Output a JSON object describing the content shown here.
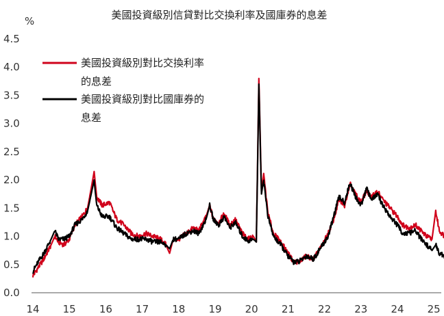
{
  "chart_data": {
    "type": "line",
    "title": "美國投資級別信貸對比交換利率及國庫券的息差",
    "ylabel": "%",
    "xlabel": "",
    "ylim": [
      0,
      4.5
    ],
    "yticks": [
      "0.0",
      "0.5",
      "1.0",
      "1.5",
      "2.0",
      "2.5",
      "3.0",
      "3.5",
      "4.0",
      "4.5"
    ],
    "xlim": [
      2014,
      2025.4
    ],
    "xticks": [
      "14",
      "15",
      "16",
      "17",
      "18",
      "19",
      "20",
      "21",
      "22",
      "23",
      "24",
      "25"
    ],
    "grid": false,
    "legend_position": "top-left",
    "series": [
      {
        "name_line1": "美國投資級別對比交換利率",
        "name_line2": "的息差",
        "color": "#d0021b",
        "points": [
          [
            2014.0,
            0.3
          ],
          [
            2014.15,
            0.45
          ],
          [
            2014.3,
            0.6
          ],
          [
            2014.5,
            0.85
          ],
          [
            2014.6,
            1.0
          ],
          [
            2014.7,
            0.9
          ],
          [
            2014.85,
            0.85
          ],
          [
            2015.0,
            0.95
          ],
          [
            2015.15,
            1.2
          ],
          [
            2015.35,
            1.35
          ],
          [
            2015.5,
            1.5
          ],
          [
            2015.6,
            1.85
          ],
          [
            2015.68,
            2.15
          ],
          [
            2015.75,
            1.7
          ],
          [
            2015.9,
            1.55
          ],
          [
            2016.1,
            1.6
          ],
          [
            2016.3,
            1.3
          ],
          [
            2016.5,
            1.2
          ],
          [
            2016.7,
            1.05
          ],
          [
            2016.9,
            1.0
          ],
          [
            2017.1,
            1.05
          ],
          [
            2017.3,
            1.0
          ],
          [
            2017.5,
            0.95
          ],
          [
            2017.65,
            0.85
          ],
          [
            2017.75,
            0.7
          ],
          [
            2017.85,
            0.95
          ],
          [
            2018.0,
            0.95
          ],
          [
            2018.2,
            1.05
          ],
          [
            2018.4,
            1.15
          ],
          [
            2018.55,
            1.1
          ],
          [
            2018.75,
            1.35
          ],
          [
            2018.85,
            1.55
          ],
          [
            2018.95,
            1.3
          ],
          [
            2019.1,
            1.25
          ],
          [
            2019.25,
            1.4
          ],
          [
            2019.4,
            1.2
          ],
          [
            2019.55,
            1.3
          ],
          [
            2019.75,
            1.05
          ],
          [
            2019.9,
            0.95
          ],
          [
            2020.05,
            1.0
          ],
          [
            2020.13,
            0.9
          ],
          [
            2020.2,
            3.8
          ],
          [
            2020.27,
            1.8
          ],
          [
            2020.33,
            2.1
          ],
          [
            2020.45,
            1.4
          ],
          [
            2020.6,
            1.05
          ],
          [
            2020.8,
            0.9
          ],
          [
            2021.0,
            0.7
          ],
          [
            2021.15,
            0.55
          ],
          [
            2021.3,
            0.55
          ],
          [
            2021.5,
            0.65
          ],
          [
            2021.7,
            0.6
          ],
          [
            2021.9,
            0.8
          ],
          [
            2022.1,
            1.05
          ],
          [
            2022.25,
            1.3
          ],
          [
            2022.4,
            1.65
          ],
          [
            2022.55,
            1.55
          ],
          [
            2022.7,
            1.95
          ],
          [
            2022.85,
            1.75
          ],
          [
            2023.0,
            1.6
          ],
          [
            2023.15,
            1.8
          ],
          [
            2023.3,
            1.7
          ],
          [
            2023.45,
            1.8
          ],
          [
            2023.6,
            1.65
          ],
          [
            2023.8,
            1.5
          ],
          [
            2024.0,
            1.35
          ],
          [
            2024.15,
            1.2
          ],
          [
            2024.3,
            1.15
          ],
          [
            2024.5,
            1.2
          ],
          [
            2024.65,
            1.1
          ],
          [
            2024.8,
            1.0
          ],
          [
            2024.95,
            0.95
          ],
          [
            2025.05,
            1.45
          ],
          [
            2025.15,
            1.1
          ],
          [
            2025.3,
            1.0
          ],
          [
            2025.4,
            0.9
          ]
        ]
      },
      {
        "name_line1": "美國投資級別對比國庫券的",
        "name_line2": "息差",
        "color": "#000000",
        "points": [
          [
            2014.0,
            0.38
          ],
          [
            2014.15,
            0.55
          ],
          [
            2014.3,
            0.7
          ],
          [
            2014.5,
            0.95
          ],
          [
            2014.6,
            1.1
          ],
          [
            2014.7,
            0.95
          ],
          [
            2014.85,
            0.95
          ],
          [
            2015.0,
            1.0
          ],
          [
            2015.15,
            1.2
          ],
          [
            2015.35,
            1.3
          ],
          [
            2015.5,
            1.45
          ],
          [
            2015.6,
            1.75
          ],
          [
            2015.68,
            2.0
          ],
          [
            2015.75,
            1.55
          ],
          [
            2015.9,
            1.35
          ],
          [
            2016.1,
            1.35
          ],
          [
            2016.3,
            1.15
          ],
          [
            2016.5,
            1.05
          ],
          [
            2016.7,
            0.95
          ],
          [
            2016.9,
            0.95
          ],
          [
            2017.1,
            0.95
          ],
          [
            2017.3,
            0.9
          ],
          [
            2017.5,
            0.9
          ],
          [
            2017.65,
            0.85
          ],
          [
            2017.75,
            0.78
          ],
          [
            2017.85,
            0.95
          ],
          [
            2018.0,
            0.95
          ],
          [
            2018.2,
            1.05
          ],
          [
            2018.4,
            1.1
          ],
          [
            2018.55,
            1.05
          ],
          [
            2018.75,
            1.3
          ],
          [
            2018.85,
            1.55
          ],
          [
            2018.95,
            1.3
          ],
          [
            2019.1,
            1.2
          ],
          [
            2019.25,
            1.35
          ],
          [
            2019.4,
            1.15
          ],
          [
            2019.55,
            1.25
          ],
          [
            2019.75,
            1.0
          ],
          [
            2019.9,
            0.92
          ],
          [
            2020.05,
            0.95
          ],
          [
            2020.13,
            0.9
          ],
          [
            2020.2,
            3.7
          ],
          [
            2020.27,
            1.75
          ],
          [
            2020.33,
            2.0
          ],
          [
            2020.45,
            1.35
          ],
          [
            2020.6,
            1.0
          ],
          [
            2020.8,
            0.85
          ],
          [
            2021.0,
            0.65
          ],
          [
            2021.15,
            0.55
          ],
          [
            2021.3,
            0.55
          ],
          [
            2021.5,
            0.65
          ],
          [
            2021.7,
            0.6
          ],
          [
            2021.9,
            0.8
          ],
          [
            2022.1,
            1.0
          ],
          [
            2022.25,
            1.35
          ],
          [
            2022.4,
            1.7
          ],
          [
            2022.55,
            1.6
          ],
          [
            2022.7,
            1.95
          ],
          [
            2022.85,
            1.7
          ],
          [
            2023.0,
            1.55
          ],
          [
            2023.15,
            1.85
          ],
          [
            2023.3,
            1.65
          ],
          [
            2023.45,
            1.75
          ],
          [
            2023.6,
            1.55
          ],
          [
            2023.8,
            1.35
          ],
          [
            2024.0,
            1.2
          ],
          [
            2024.15,
            1.05
          ],
          [
            2024.3,
            1.05
          ],
          [
            2024.5,
            1.1
          ],
          [
            2024.65,
            0.95
          ],
          [
            2024.8,
            0.85
          ],
          [
            2024.95,
            0.75
          ],
          [
            2025.05,
            0.85
          ],
          [
            2025.15,
            0.7
          ],
          [
            2025.3,
            0.65
          ],
          [
            2025.4,
            0.7
          ]
        ]
      }
    ]
  }
}
